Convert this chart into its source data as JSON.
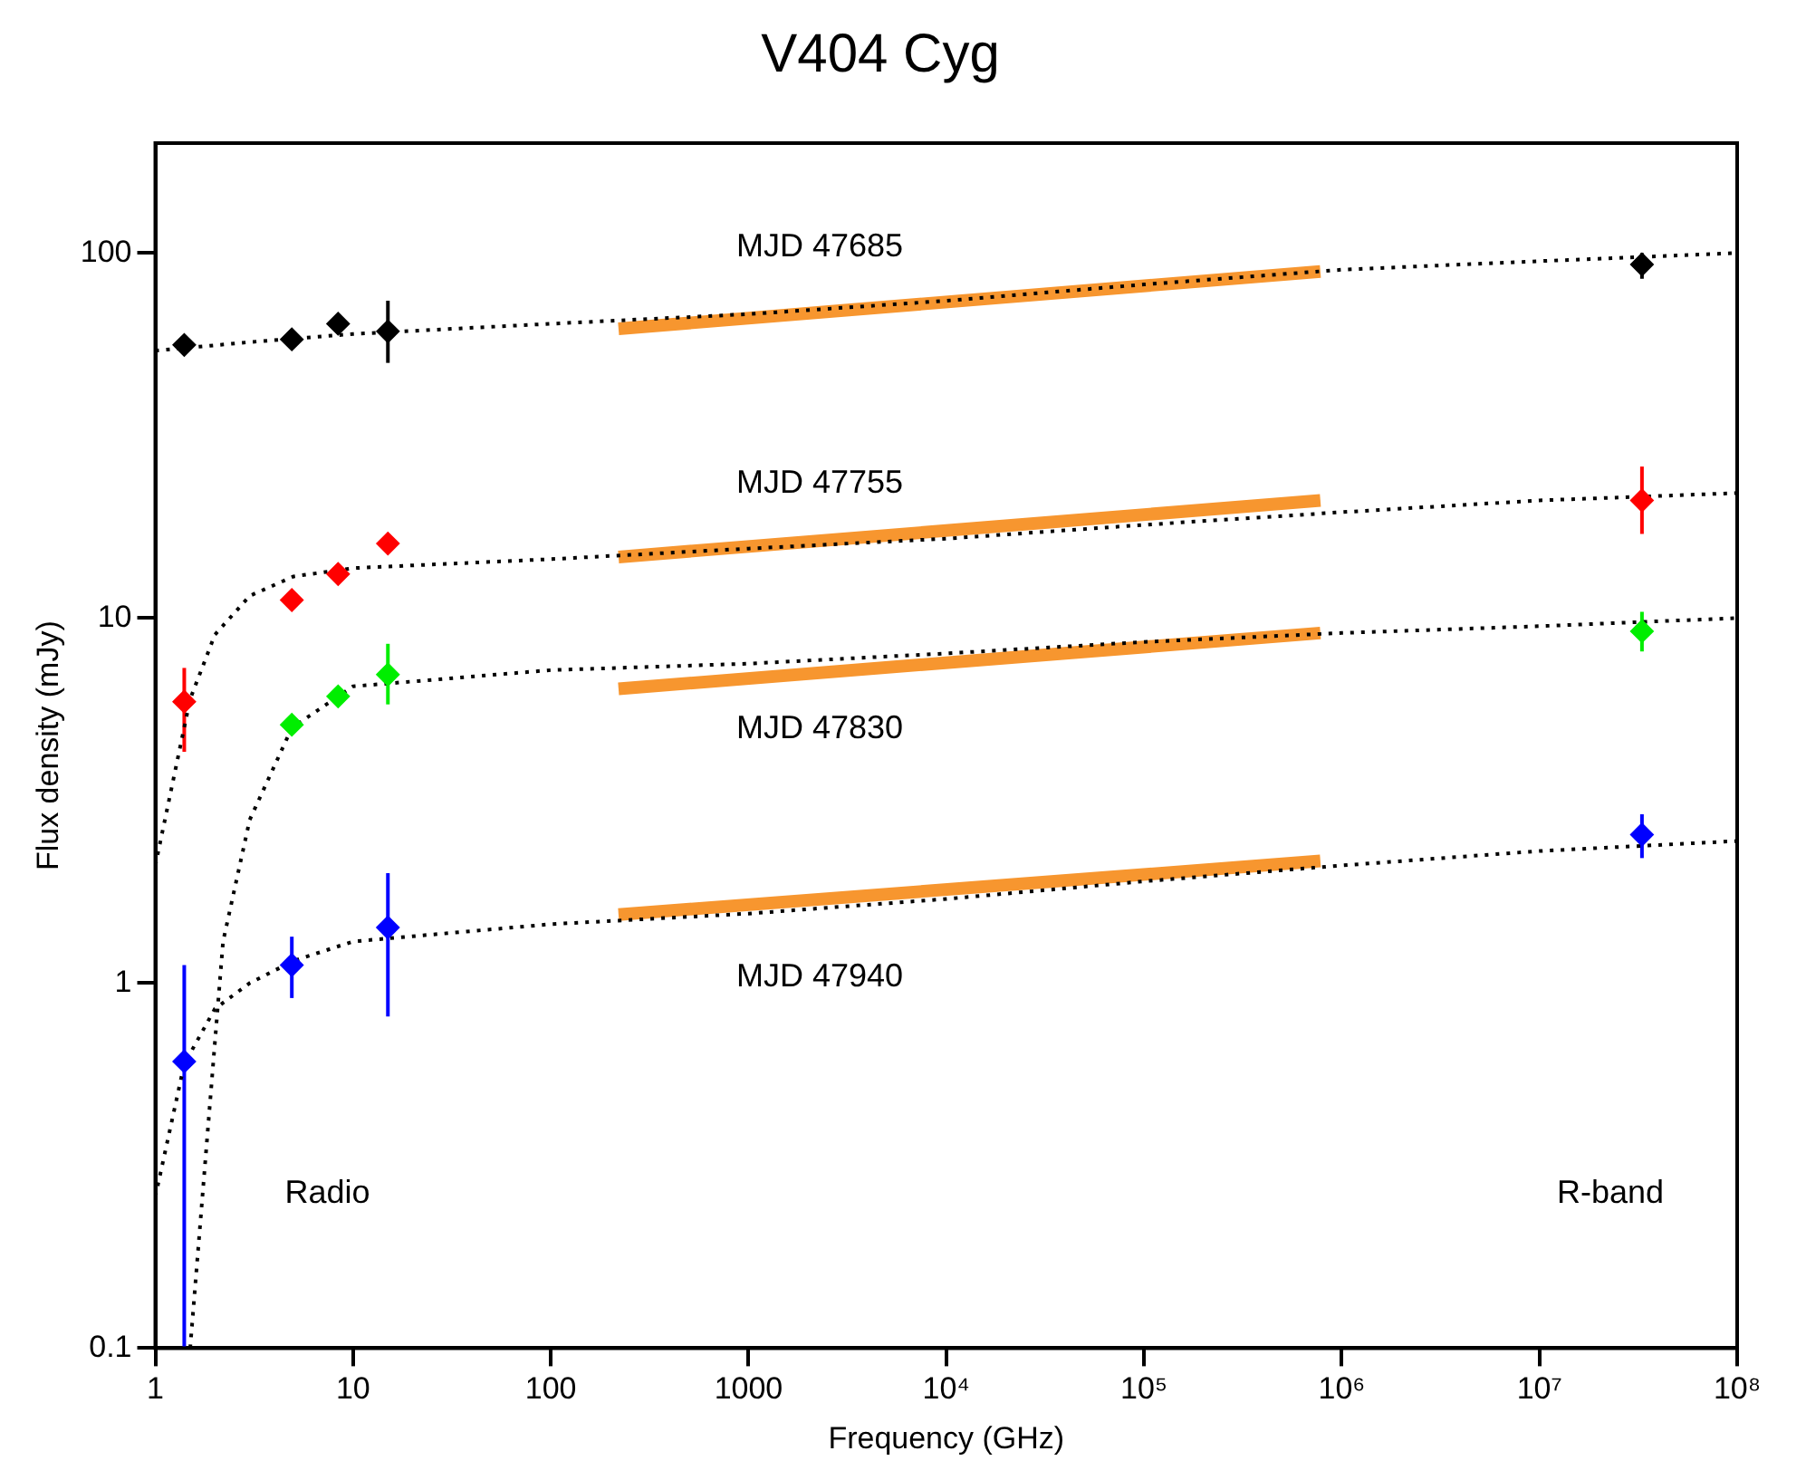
{
  "chart_data": {
    "type": "scatter",
    "title": "V404 Cyg",
    "xlabel": "Frequency (GHz)",
    "ylabel": "Flux density (mJy)",
    "log": "xy",
    "grid": false,
    "legend": false,
    "xlim": [
      1,
      100000000
    ],
    "xticks": [
      1,
      10,
      100,
      1000,
      {
        "value": 10000,
        "label": "10⁴"
      },
      {
        "value": 100000,
        "label": "10⁵"
      },
      {
        "value": 1000000,
        "label": "10⁶"
      },
      {
        "value": 10000000,
        "label": "10⁷"
      },
      {
        "value": 100000000,
        "label": "10⁸"
      }
    ],
    "ylim": [
      0.1,
      200
    ],
    "yticks": [
      0.1,
      1,
      10,
      100
    ],
    "series": [
      {
        "marker": "diamond",
        "color": "#000000",
        "x": [
          1.4,
          4.9,
          8.4,
          15,
          33000000
        ],
        "values": [
          56,
          58,
          64,
          61,
          93
        ],
        "errors": [
          null,
          null,
          null,
          [
            50,
            74
          ],
          [
            85,
            100
          ]
        ]
      },
      {
        "marker": "diamond",
        "color": "#ff0000",
        "x": [
          1.4,
          4.9,
          8.4,
          15,
          33000000
        ],
        "values": [
          5.9,
          11.2,
          13.2,
          16,
          21
        ],
        "errors": [
          [
            4.3,
            7.3
          ],
          null,
          null,
          null,
          [
            17,
            26
          ]
        ]
      },
      {
        "marker": "diamond",
        "color": "#00ee00",
        "x": [
          4.9,
          8.4,
          15,
          33000000
        ],
        "values": [
          5.1,
          6.1,
          7.0,
          9.2
        ],
        "errors": [
          null,
          null,
          [
            5.8,
            8.5
          ],
          [
            8.1,
            10.4
          ]
        ]
      },
      {
        "marker": "diamond",
        "color": "#0000ff",
        "x": [
          1.4,
          4.9,
          15,
          33000000
        ],
        "values": [
          0.61,
          1.12,
          1.42,
          2.55
        ],
        "errors": [
          [
            0.1,
            1.12
          ],
          [
            0.91,
            1.34
          ],
          [
            0.81,
            2.0
          ],
          [
            2.2,
            2.9
          ]
        ]
      },
      {
        "type": "line",
        "name": "MJD 47685",
        "line_style": "dotted",
        "color": "#000000",
        "x": [
          1,
          3,
          10,
          100,
          1000,
          10000,
          100000,
          1000000,
          10000000,
          100000000
        ],
        "values": [
          54,
          57,
          60,
          64,
          68,
          74,
          82,
          90,
          95,
          100
        ]
      },
      {
        "type": "line",
        "name": "MJD 47755",
        "line_style": "dotted",
        "color": "#000000",
        "x": [
          1,
          1.5,
          2,
          3,
          5,
          10,
          100,
          1000,
          10000,
          100000,
          1000000,
          10000000,
          100000000
        ],
        "values": [
          2.1,
          6,
          9,
          11.5,
          13,
          13.7,
          14.5,
          15.5,
          16.5,
          18,
          19.5,
          21,
          22
        ]
      },
      {
        "type": "line",
        "name": "MJD 47830",
        "line_style": "dotted",
        "color": "#000000",
        "x": [
          1.5,
          2.2,
          3,
          4.9,
          10,
          100,
          1000,
          10000,
          100000,
          1000000,
          10000000,
          100000000
        ],
        "values": [
          0.1,
          1.3,
          2.8,
          5,
          6.5,
          7.2,
          7.5,
          8,
          8.6,
          9.1,
          9.5,
          10
        ]
      },
      {
        "type": "line",
        "name": "MJD 47940",
        "line_style": "dotted",
        "color": "#000000",
        "x": [
          1,
          1.4,
          2,
          3,
          5,
          10,
          100,
          1000,
          10000,
          100000,
          1000000,
          10000000,
          100000000
        ],
        "values": [
          0.26,
          0.6,
          0.85,
          1.0,
          1.15,
          1.3,
          1.45,
          1.55,
          1.7,
          1.9,
          2.1,
          2.3,
          2.45
        ]
      },
      {
        "type": "line",
        "line_style": "solid",
        "color": "#f7962f",
        "x": [
          220,
          780000
        ],
        "values": [
          62,
          89
        ]
      },
      {
        "type": "line",
        "line_style": "solid",
        "color": "#f7962f",
        "x": [
          220,
          780000
        ],
        "values": [
          14.7,
          21
        ]
      },
      {
        "type": "line",
        "line_style": "solid",
        "color": "#f7962f",
        "x": [
          220,
          780000
        ],
        "values": [
          6.4,
          9.1
        ]
      },
      {
        "type": "line",
        "line_style": "solid",
        "color": "#f7962f",
        "x": [
          220,
          780000
        ],
        "values": [
          1.54,
          2.16
        ]
      }
    ],
    "annotations": [
      "Radio",
      "R-band"
    ]
  }
}
